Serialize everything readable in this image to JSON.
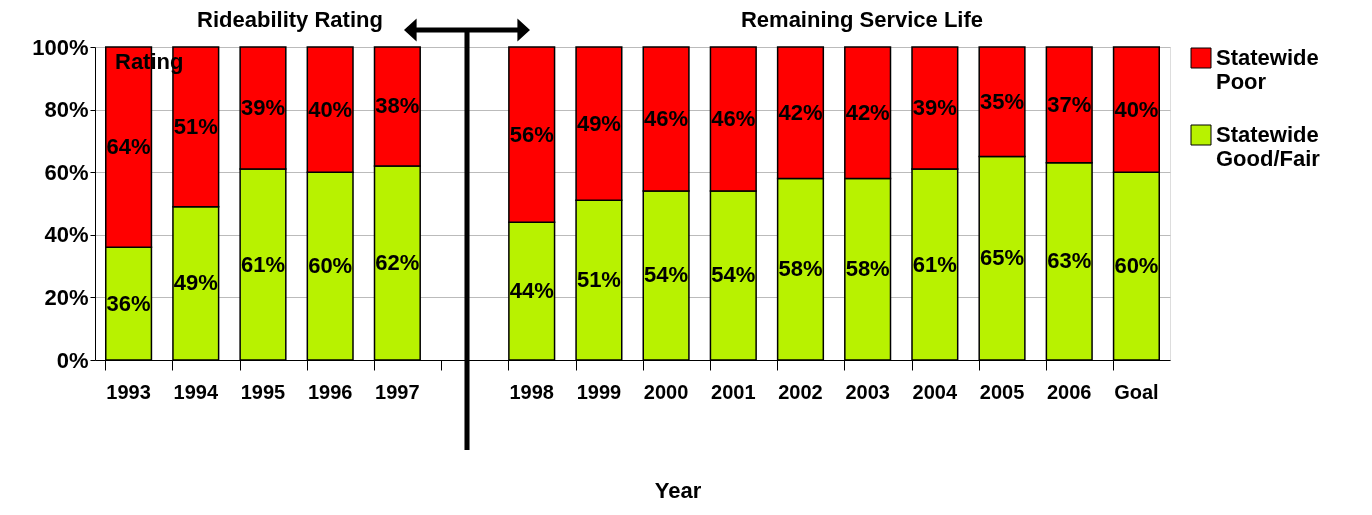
{
  "chart_data": {
    "type": "bar",
    "stacked": true,
    "xlabel": "Year",
    "categories": [
      "1993",
      "1994",
      "1995",
      "1996",
      "1997",
      null,
      "1998",
      "1999",
      "2000",
      "2001",
      "2002",
      "2003",
      "2004",
      "2005",
      "2006",
      "Goal"
    ],
    "series": [
      {
        "name": "Statewide Good/Fair",
        "color": "#b8f200",
        "values": [
          36,
          49,
          61,
          60,
          62,
          null,
          44,
          51,
          54,
          54,
          58,
          58,
          61,
          65,
          63,
          60
        ],
        "value_labels": [
          "36%",
          "49%",
          "61%",
          "60%",
          "62%",
          null,
          "44%",
          "51%",
          "54%",
          "54%",
          "58%",
          "58%",
          "61%",
          "65%",
          "63%",
          "60%"
        ]
      },
      {
        "name": "Statewide Poor",
        "color": "#ff0000",
        "values": [
          64,
          51,
          39,
          40,
          38,
          null,
          56,
          49,
          46,
          46,
          42,
          42,
          39,
          35,
          37,
          40
        ],
        "value_labels": [
          "64%",
          "51%",
          "39%",
          "40%",
          "38%",
          null,
          "56%",
          "49%",
          "46%",
          "46%",
          "42%",
          "42%",
          "39%",
          "35%",
          "37%",
          "40%"
        ]
      }
    ],
    "ylim": [
      0,
      100
    ],
    "yticks": [
      {
        "value": 0,
        "label": "0%"
      },
      {
        "value": 20,
        "label": "20%"
      },
      {
        "value": 40,
        "label": "40%"
      },
      {
        "value": 60,
        "label": "60%"
      },
      {
        "value": 80,
        "label": "80%"
      },
      {
        "value": 100,
        "label": "100%"
      }
    ],
    "grid": "y",
    "legend": "right",
    "annotations": [
      "Rideability Rating",
      "Rating",
      "Remaining Service Life"
    ]
  }
}
